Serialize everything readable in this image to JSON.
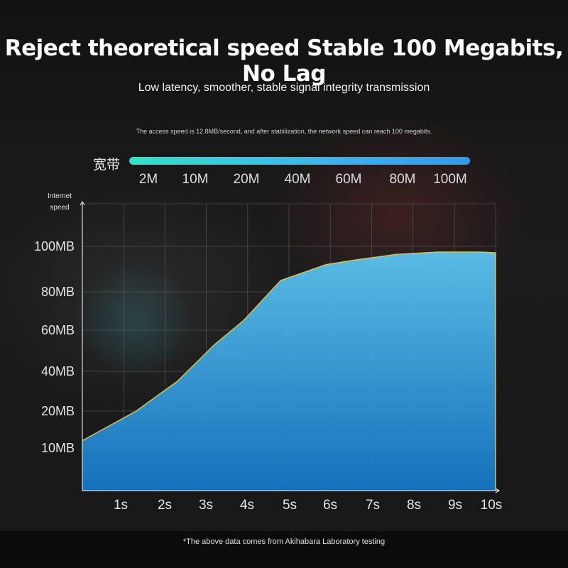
{
  "header": {
    "title": "Reject theoretical speed Stable 100 Megabits, No Lag",
    "subtitle": "Low latency, smoother, stable signal integrity transmission",
    "note": "The access speed is 12.8MB/second, and after stabilization, the network speed can reach 100 megabits."
  },
  "bandwidth": {
    "label": "宽带",
    "ticks": [
      "2M",
      "10M",
      "20M",
      "40M",
      "60M",
      "80M",
      "100M"
    ]
  },
  "footer": "*The above data comes from Akihabara Laboratory testing",
  "colors": {
    "area_top": "#5cc4ee",
    "area_bottom": "#1476c4",
    "outline": "#d8c24a",
    "grid": "#6f6f6f"
  },
  "chart_data": {
    "type": "area",
    "ylabel": "Internet speed",
    "xlabel": "",
    "x_ticks": [
      "1s",
      "2s",
      "3s",
      "4s",
      "5s",
      "6s",
      "7s",
      "8s",
      "9s",
      "10s"
    ],
    "y_ticks": [
      "10MB",
      "20MB",
      "40MB",
      "60MB",
      "80MB",
      "100MB"
    ],
    "x": [
      0,
      1.3,
      2.3,
      3.2,
      3.9,
      4.8,
      5.9,
      6.6,
      7.6,
      8.6,
      9.6,
      10
    ],
    "y": [
      12,
      20,
      35,
      53,
      65,
      85,
      92,
      94,
      96.5,
      97.5,
      97.5,
      97.2
    ],
    "grid": true
  }
}
